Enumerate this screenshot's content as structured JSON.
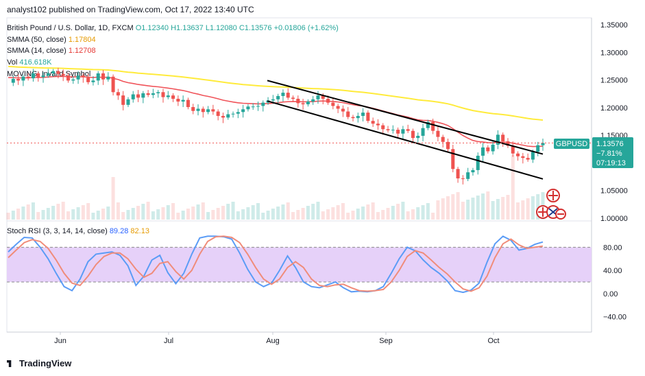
{
  "header": {
    "publisher": "analyst102 published on TradingView.com, Oct 17, 2022 13:40 UTC"
  },
  "legend": {
    "symbol": "British Pound / U.S. Dollar, 1D, FXCM",
    "open": "O1.12340",
    "high": "H1.13637",
    "low": "L1.12080",
    "close": "C1.13576",
    "change": "+0.01806 (+1.62%)",
    "smma50_label": "SMMA (50, close)",
    "smma50_value": "1.17804",
    "smma14_label": "SMMA (14, close)",
    "smma14_value": "1.12708",
    "vol_label": "Vol",
    "vol_value": "416.618K",
    "invalid": "MOVING: Invalid Symbol",
    "stoch_label": "Stoch RSI (3, 3, 14, 14, close)",
    "stoch_k": "89.28",
    "stoch_d": "82.13"
  },
  "price_box": {
    "symbol": "GBPUSD",
    "price": "1.13576",
    "pct": "−7.81%",
    "timer": "07:19:13"
  },
  "footer": {
    "brand": "TradingView"
  },
  "colors": {
    "up": "#26a69a",
    "down": "#ef5350",
    "smma50": "#ffeb3b",
    "smma14": "#f05359",
    "k": "#5b9cf6",
    "d": "#f08c7a",
    "band": "#e6d1f9"
  },
  "chart_data": [
    {
      "type": "candlestick",
      "title": "British Pound / U.S. Dollar, 1D, FXCM",
      "xticks": [
        "Jun",
        "Jul",
        "Aug",
        "Sep",
        "Oct"
      ],
      "yticks": [
        "1.35000",
        "1.30000",
        "1.25000",
        "1.20000",
        "1.15000",
        "1.05000",
        "1.00000"
      ],
      "ylim": [
        1.0,
        1.35
      ],
      "close": [
        1.245,
        1.252,
        1.249,
        1.256,
        1.253,
        1.262,
        1.255,
        1.258,
        1.262,
        1.266,
        1.261,
        1.258,
        1.249,
        1.251,
        1.258,
        1.255,
        1.246,
        1.249,
        1.262,
        1.251,
        1.256,
        1.228,
        1.222,
        1.205,
        1.215,
        1.224,
        1.218,
        1.226,
        1.223,
        1.226,
        1.228,
        1.219,
        1.222,
        1.216,
        1.211,
        1.214,
        1.201,
        1.194,
        1.198,
        1.192,
        1.197,
        1.193,
        1.185,
        1.182,
        1.188,
        1.189,
        1.192,
        1.197,
        1.202,
        1.202,
        1.203,
        1.209,
        1.213,
        1.215,
        1.221,
        1.227,
        1.218,
        1.216,
        1.208,
        1.206,
        1.211,
        1.215,
        1.222,
        1.216,
        1.209,
        1.203,
        1.198,
        1.193,
        1.183,
        1.181,
        1.185,
        1.191,
        1.176,
        1.171,
        1.168,
        1.161,
        1.159,
        1.16,
        1.153,
        1.161,
        1.158,
        1.145,
        1.149,
        1.163,
        1.174,
        1.158,
        1.147,
        1.138,
        1.125,
        1.089,
        1.072,
        1.071,
        1.083,
        1.087,
        1.113,
        1.128,
        1.121,
        1.133,
        1.151,
        1.139,
        1.131,
        1.117,
        1.112,
        1.109,
        1.106,
        1.12,
        1.132,
        1.136
      ],
      "smma50_end": 1.17804,
      "smma14_end": 1.12708,
      "trend_channel": {
        "upper": [
          [
            1.249,
            "Aug"
          ],
          [
            1.116,
            "Oct"
          ]
        ],
        "lower": [
          [
            1.212,
            "Aug"
          ],
          [
            1.071,
            "Oct"
          ]
        ]
      }
    },
    {
      "type": "line",
      "title": "Stoch RSI (3, 3, 14, 14, close)",
      "yticks": [
        "80.00",
        "40.00",
        "0.00",
        "−40.00"
      ],
      "ylim": [
        -50,
        110
      ],
      "band": [
        20,
        80
      ],
      "series": [
        {
          "name": "K",
          "values": [
            72,
            85,
            97,
            96,
            80,
            60,
            35,
            12,
            5,
            25,
            55,
            68,
            70,
            72,
            66,
            48,
            14,
            30,
            58,
            66,
            36,
            17,
            35,
            68,
            96,
            99,
            99,
            98,
            94,
            70,
            42,
            20,
            12,
            18,
            40,
            65,
            45,
            20,
            12,
            10,
            15,
            20,
            10,
            3,
            4,
            3,
            5,
            12,
            35,
            60,
            80,
            74,
            58,
            45,
            35,
            22,
            5,
            2,
            6,
            18,
            54,
            86,
            99,
            92,
            75,
            78,
            85,
            89
          ]
        },
        {
          "name": "D",
          "values": [
            62,
            75,
            88,
            93,
            90,
            78,
            58,
            35,
            18,
            14,
            30,
            50,
            64,
            70,
            70,
            60,
            42,
            28,
            35,
            52,
            55,
            38,
            25,
            40,
            68,
            90,
            98,
            99,
            97,
            88,
            68,
            45,
            25,
            16,
            25,
            45,
            55,
            45,
            25,
            14,
            12,
            15,
            16,
            10,
            5,
            4,
            5,
            7,
            20,
            40,
            64,
            74,
            70,
            58,
            45,
            34,
            20,
            8,
            4,
            10,
            30,
            62,
            86,
            94,
            84,
            78,
            80,
            82
          ]
        }
      ]
    }
  ]
}
